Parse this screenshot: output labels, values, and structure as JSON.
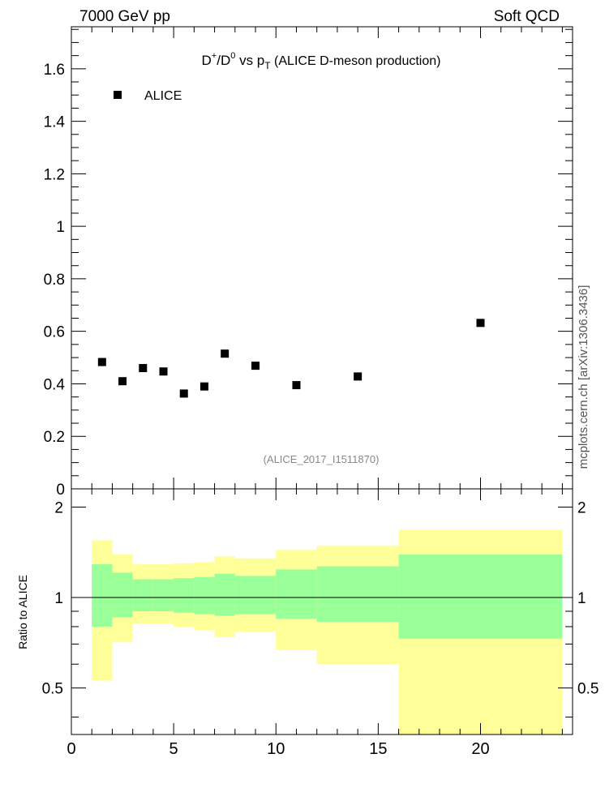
{
  "header": {
    "left_label": "7000 GeV pp",
    "right_label": "Soft QCD",
    "side_label": "mcplots.cern.ch [arXiv:1306.3436]"
  },
  "chart_data": [
    {
      "type": "scatter",
      "title": {
        "main": "D",
        "sup1": "+",
        "mid": "/D",
        "sup2": "0",
        "vs": " vs p",
        "sub": "T",
        "tail": " (ALICE D-meson production)"
      },
      "watermark": "(ALICE_2017_I1511870)",
      "xlim": [
        0,
        24.5
      ],
      "ylim": [
        0,
        1.76
      ],
      "yticks": [
        0,
        0.2,
        0.4,
        0.6,
        0.8,
        1,
        1.2,
        1.4,
        1.6
      ],
      "ytick_labels": [
        "0",
        "0.2",
        "0.4",
        "0.6",
        "0.8",
        "1",
        "1.2",
        "1.4",
        "1.6"
      ],
      "legend": {
        "placement": "top-left",
        "entries": [
          "ALICE"
        ]
      },
      "series": [
        {
          "name": "ALICE",
          "color": "#000000",
          "marker": "square",
          "x": [
            1.5,
            2.5,
            3.5,
            4.5,
            5.5,
            6.5,
            7.5,
            9.0,
            11.0,
            14.0,
            20.0
          ],
          "y": [
            0.483,
            0.41,
            0.46,
            0.447,
            0.363,
            0.39,
            0.515,
            0.469,
            0.395,
            0.428,
            0.632
          ]
        }
      ]
    },
    {
      "type": "area",
      "ylabel": "Ratio to ALICE",
      "xlim": [
        0,
        24.5
      ],
      "ylim": [
        0.35,
        2.3
      ],
      "xticks": [
        0,
        5,
        10,
        15,
        20
      ],
      "xtick_labels": [
        "0",
        "5",
        "10",
        "15",
        "20"
      ],
      "yticks": [
        0.5,
        1,
        2
      ],
      "ytick_labels": [
        "0.5",
        "1",
        "2"
      ],
      "reference_line": 1,
      "bands": {
        "outer_color": "#ffff99",
        "inner_color": "#99ff99",
        "bins": [
          {
            "lo": 1,
            "hi": 2,
            "outer": [
              0.53,
              1.55
            ],
            "inner": [
              0.8,
              1.29
            ]
          },
          {
            "lo": 2,
            "hi": 3,
            "outer": [
              0.71,
              1.39
            ],
            "inner": [
              0.86,
              1.21
            ]
          },
          {
            "lo": 3,
            "hi": 4,
            "outer": [
              0.82,
              1.29
            ],
            "inner": [
              0.9,
              1.15
            ]
          },
          {
            "lo": 4,
            "hi": 5,
            "outer": [
              0.82,
              1.29
            ],
            "inner": [
              0.9,
              1.15
            ]
          },
          {
            "lo": 5,
            "hi": 6,
            "outer": [
              0.8,
              1.3
            ],
            "inner": [
              0.89,
              1.16
            ]
          },
          {
            "lo": 6,
            "hi": 7,
            "outer": [
              0.78,
              1.31
            ],
            "inner": [
              0.88,
              1.17
            ]
          },
          {
            "lo": 7,
            "hi": 8,
            "outer": [
              0.74,
              1.37
            ],
            "inner": [
              0.87,
              1.2
            ]
          },
          {
            "lo": 8,
            "hi": 10,
            "outer": [
              0.77,
              1.35
            ],
            "inner": [
              0.88,
              1.18
            ]
          },
          {
            "lo": 10,
            "hi": 12,
            "outer": [
              0.67,
              1.44
            ],
            "inner": [
              0.85,
              1.24
            ]
          },
          {
            "lo": 12,
            "hi": 16,
            "outer": [
              0.6,
              1.49
            ],
            "inner": [
              0.83,
              1.27
            ]
          },
          {
            "lo": 16,
            "hi": 24,
            "outer": [
              0.32,
              1.68
            ],
            "inner": [
              0.73,
              1.39
            ]
          }
        ]
      }
    }
  ]
}
